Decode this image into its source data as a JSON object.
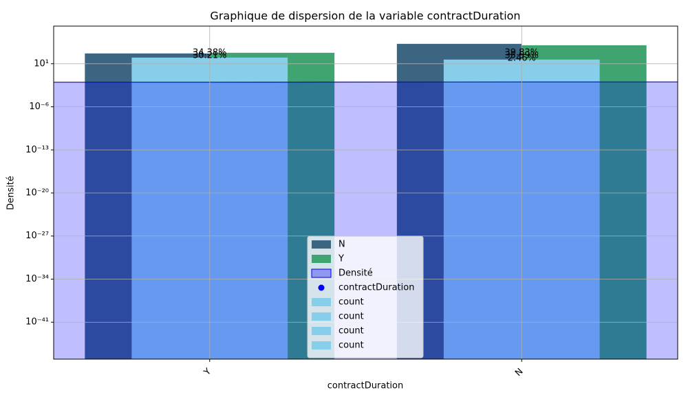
{
  "chart_data": {
    "type": "bar",
    "title": "Graphique de dispersion de la variable contractDuration",
    "xlabel": "contractDuration",
    "ylabel": "Densité",
    "categories": [
      "Y",
      "N"
    ],
    "log_y": true,
    "grid": true,
    "legend": "lower center",
    "ylim": [
      1e-47,
      13000000.0
    ],
    "yticks": [
      {
        "value": 10,
        "label": "10¹"
      },
      {
        "value": 1e-06,
        "label": "10⁻⁶"
      },
      {
        "value": 1e-13,
        "label": "10⁻¹³"
      },
      {
        "value": 1e-20,
        "label": "10⁻²⁰"
      },
      {
        "value": 1e-27,
        "label": "10⁻²⁷"
      },
      {
        "value": 1e-34,
        "label": "10⁻³⁴"
      },
      {
        "value": 1e-41,
        "label": "10⁻⁴¹"
      }
    ],
    "series": [
      {
        "name": "N",
        "kind": "bar",
        "color": "#3b6580",
        "values": [
          470,
          17000
        ]
      },
      {
        "name": "Y",
        "kind": "bar",
        "color": "#40a471",
        "values": [
          600,
          10000
        ]
      },
      {
        "name": "Densité",
        "kind": "area",
        "color": "#0000ff",
        "values": [
          0.01,
          0.011
        ]
      },
      {
        "name": "contractDuration",
        "kind": "scatter",
        "color": "#0000ff",
        "values": [
          null,
          null
        ]
      },
      {
        "name": "count",
        "kind": "bar",
        "color": "#87ceeb",
        "values": [
          100,
          47
        ]
      },
      {
        "name": "count",
        "kind": "bar",
        "color": "#87ceeb",
        "values": [
          null,
          null
        ]
      },
      {
        "name": "count",
        "kind": "bar",
        "color": "#87ceeb",
        "values": [
          null,
          null
        ]
      },
      {
        "name": "count",
        "kind": "bar",
        "color": "#87ceeb",
        "values": [
          null,
          null
        ]
      }
    ],
    "annotations": [
      {
        "category": "Y",
        "text": "34.38%"
      },
      {
        "category": "Y",
        "text": "30.21%"
      },
      {
        "category": "N",
        "text": "39.83%"
      },
      {
        "category": "N",
        "text": "35.59%"
      },
      {
        "category": "N",
        "text": "2.46%"
      }
    ]
  }
}
